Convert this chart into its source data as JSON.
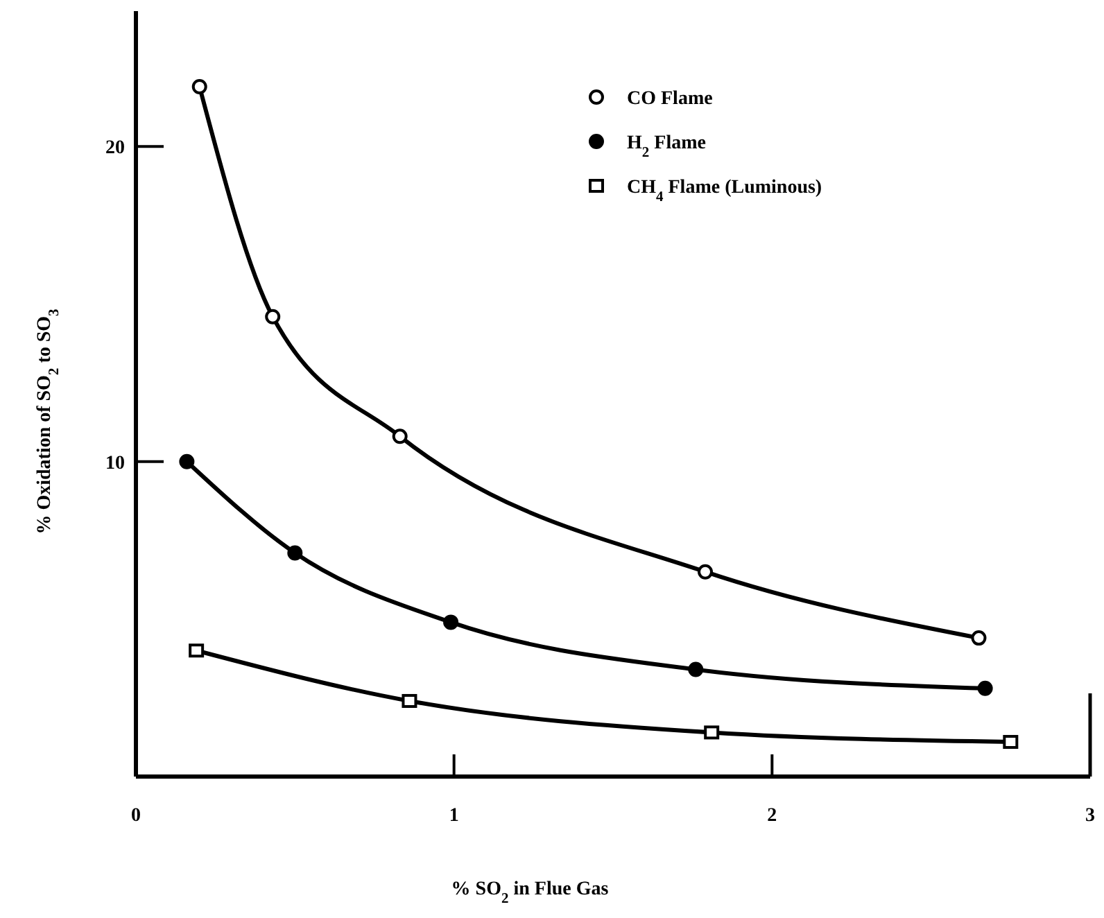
{
  "chart_data": {
    "type": "line",
    "xlabel": "% SO$_{2}$ in Flue Gas",
    "ylabel": "% Oxidation of SO$_{2}$ to SO$_{3}$",
    "xlim": [
      0,
      3
    ],
    "ylim": [
      0,
      24.3
    ],
    "xticks": [
      0,
      1,
      2,
      3
    ],
    "yticks": [
      10,
      20
    ],
    "grid": false,
    "legend": "top right",
    "line_style": "solid",
    "series": [
      {
        "name": "CO Flame",
        "color": "#000000",
        "marker": "circle",
        "x": [
          0.2,
          0.43,
          0.83,
          1.79,
          2.65
        ],
        "values": [
          21.9,
          14.6,
          10.8,
          6.5,
          4.4
        ]
      },
      {
        "name": "H$_{2}$ Flame",
        "color": "#000000",
        "marker": "circle-filled",
        "x": [
          0.16,
          0.5,
          0.99,
          1.76,
          2.67
        ],
        "values": [
          10.0,
          7.1,
          4.9,
          3.4,
          2.8
        ]
      },
      {
        "name": "CH$_{4}$ Flame (Luminous)",
        "color": "#000000",
        "marker": "square",
        "x": [
          0.19,
          0.86,
          1.81,
          2.75
        ],
        "values": [
          4.0,
          2.4,
          1.4,
          1.1
        ]
      }
    ]
  }
}
